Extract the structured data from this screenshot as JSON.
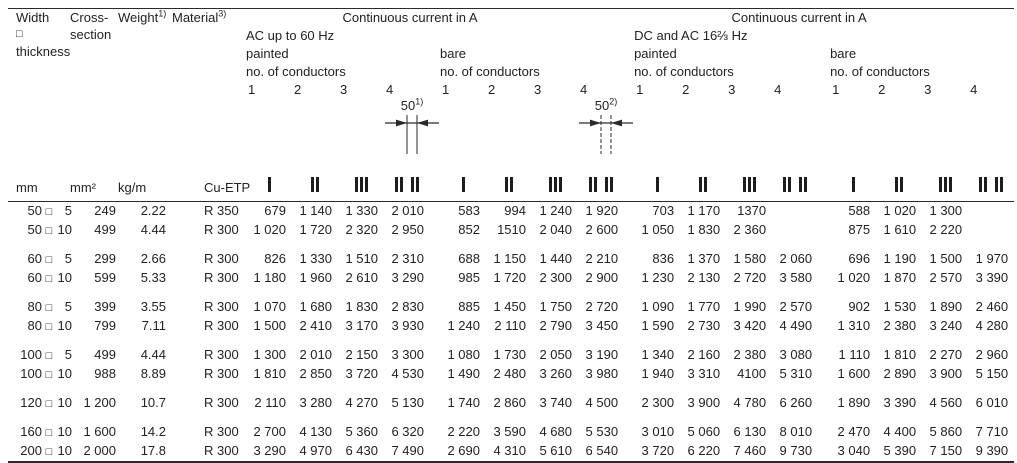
{
  "static_columns": {
    "width": {
      "lines": [
        "Width",
        "□",
        "thickness"
      ],
      "unit": "mm"
    },
    "cross_section": {
      "lines": [
        "Cross-",
        "section"
      ],
      "unit": "mm²"
    },
    "weight": {
      "label": "Weight",
      "footnote": "1)",
      "unit": "kg/m"
    },
    "material": {
      "label": "Material",
      "footnote": "3)",
      "unit": "Cu-ETP"
    }
  },
  "groups": [
    {
      "title": "Continuous current in A",
      "subtitle": "AC up to 60 Hz",
      "sections": [
        {
          "finish": "painted",
          "conductors_label": "no. of conductors",
          "counts": [
            "1",
            "2",
            "3",
            "4"
          ]
        },
        {
          "finish": "bare",
          "conductors_label": "no. of conductors",
          "counts": [
            "1",
            "2",
            "3",
            "4"
          ]
        }
      ]
    },
    {
      "title": "Continuous current in A",
      "subtitle": "DC and AC 16⅔ Hz",
      "sections": [
        {
          "finish": "painted",
          "conductors_label": "no. of conductors",
          "counts": [
            "1",
            "2",
            "3",
            "4"
          ]
        },
        {
          "finish": "bare",
          "conductors_label": "no. of conductors",
          "counts": [
            "1",
            "2",
            "3",
            "4"
          ]
        }
      ]
    }
  ],
  "diagrams": [
    {
      "value": "50",
      "footnote": "1)"
    },
    {
      "value": "50",
      "footnote": "2)"
    }
  ],
  "rows": [
    {
      "width": "50",
      "thickness": "5",
      "cross_section": "249",
      "weight": "2.22",
      "material": "R 350",
      "currents": [
        "679",
        "1 140",
        "1 330",
        "2 010",
        "583",
        "994",
        "1 240",
        "1 920",
        "703",
        "1 170",
        "1370",
        "",
        "588",
        "1 020",
        "1 300",
        ""
      ]
    },
    {
      "width": "50",
      "thickness": "10",
      "cross_section": "499",
      "weight": "4.44",
      "material": "R 300",
      "currents": [
        "1 020",
        "1 720",
        "2 320",
        "2 950",
        "852",
        "1510",
        "2 040",
        "2 600",
        "1 050",
        "1 830",
        "2 360",
        "",
        "875",
        "1 610",
        "2 220",
        ""
      ]
    },
    {
      "width": "60",
      "thickness": "5",
      "cross_section": "299",
      "weight": "2.66",
      "material": "R 300",
      "gap": true,
      "currents": [
        "826",
        "1 330",
        "1 510",
        "2 310",
        "688",
        "1 150",
        "1 440",
        "2 210",
        "836",
        "1 370",
        "1 580",
        "2 060",
        "696",
        "1 190",
        "1 500",
        "1 970"
      ]
    },
    {
      "width": "60",
      "thickness": "10",
      "cross_section": "599",
      "weight": "5.33",
      "material": "R 300",
      "currents": [
        "1 180",
        "1 960",
        "2 610",
        "3 290",
        "985",
        "1 720",
        "2 300",
        "2 900",
        "1 230",
        "2 130",
        "2 720",
        "3 580",
        "1 020",
        "1 870",
        "2 570",
        "3 390"
      ]
    },
    {
      "width": "80",
      "thickness": "5",
      "cross_section": "399",
      "weight": "3.55",
      "material": "R 300",
      "gap": true,
      "currents": [
        "1 070",
        "1 680",
        "1 830",
        "2 830",
        "885",
        "1 450",
        "1 750",
        "2 720",
        "1 090",
        "1 770",
        "1 990",
        "2 570",
        "902",
        "1 530",
        "1 890",
        "2 460"
      ]
    },
    {
      "width": "80",
      "thickness": "10",
      "cross_section": "799",
      "weight": "7.11",
      "material": "R 300",
      "currents": [
        "1 500",
        "2 410",
        "3 170",
        "3 930",
        "1 240",
        "2 110",
        "2 790",
        "3 450",
        "1 590",
        "2 730",
        "3 420",
        "4 490",
        "1 310",
        "2 380",
        "3 240",
        "4 280"
      ]
    },
    {
      "width": "100",
      "thickness": "5",
      "cross_section": "499",
      "weight": "4.44",
      "material": "R 300",
      "gap": true,
      "currents": [
        "1 300",
        "2 010",
        "2 150",
        "3 300",
        "1 080",
        "1 730",
        "2 050",
        "3 190",
        "1 340",
        "2 160",
        "2 380",
        "3 080",
        "1 110",
        "1 810",
        "2 270",
        "2 960"
      ]
    },
    {
      "width": "100",
      "thickness": "10",
      "cross_section": "988",
      "weight": "8.89",
      "material": "R 300",
      "currents": [
        "1 810",
        "2 850",
        "3 720",
        "4 530",
        "1 490",
        "2 480",
        "3 260",
        "3 980",
        "1 940",
        "3 310",
        "4100",
        "5 310",
        "1 600",
        "2 890",
        "3 900",
        "5 150"
      ]
    },
    {
      "width": "120",
      "thickness": "10",
      "cross_section": "1 200",
      "weight": "10.7",
      "material": "R 300",
      "gap": true,
      "currents": [
        "2 110",
        "3 280",
        "4 270",
        "5 130",
        "1 740",
        "2 860",
        "3 740",
        "4 500",
        "2 300",
        "3 900",
        "4 780",
        "6 260",
        "1 890",
        "3 390",
        "4 560",
        "6 010"
      ]
    },
    {
      "width": "160",
      "thickness": "10",
      "cross_section": "1 600",
      "weight": "14.2",
      "material": "R 300",
      "gap": true,
      "currents": [
        "2 700",
        "4 130",
        "5 360",
        "6 320",
        "2 220",
        "3 590",
        "4 680",
        "5 530",
        "3 010",
        "5 060",
        "6 130",
        "8 010",
        "2 470",
        "4 400",
        "5 860",
        "7 710"
      ]
    },
    {
      "width": "200",
      "thickness": "10",
      "cross_section": "2 000",
      "weight": "17.8",
      "material": "R 300",
      "currents": [
        "3 290",
        "4 970",
        "6 430",
        "7 490",
        "2 690",
        "4 310",
        "5 610",
        "6 540",
        "3 720",
        "6 220",
        "7 460",
        "9 730",
        "3 040",
        "5 390",
        "7 150",
        "9 390"
      ]
    }
  ]
}
